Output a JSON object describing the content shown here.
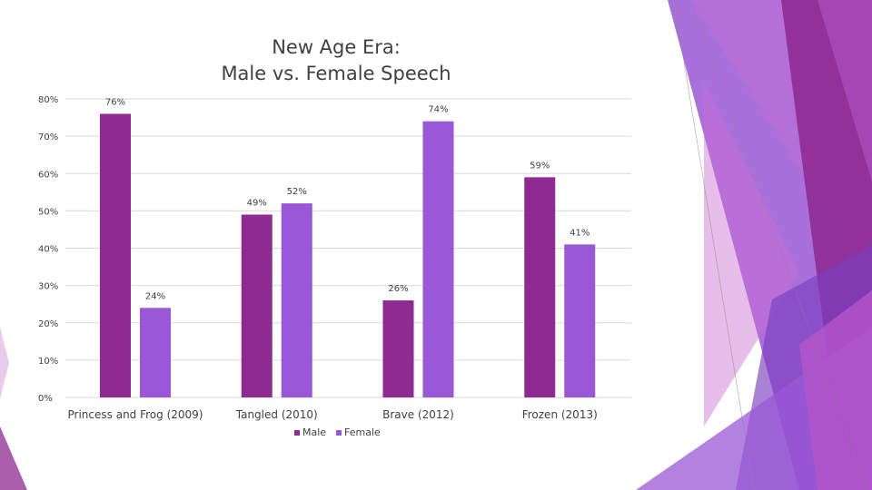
{
  "slide": {
    "title_line1": "New Age Era:",
    "title_line2": "Male vs. Female Speech"
  },
  "chart_data": {
    "type": "bar",
    "title": "New Age Era: Male vs. Female Speech",
    "xlabel": "",
    "ylabel": "",
    "ylim": [
      0,
      80
    ],
    "yticks": [
      0,
      10,
      20,
      30,
      40,
      50,
      60,
      70,
      80
    ],
    "ytick_labels": [
      "0%",
      "10%",
      "20%",
      "30%",
      "40%",
      "50%",
      "60%",
      "70%",
      "80%"
    ],
    "categories": [
      "Princess and Frog (2009)",
      "Tangled (2010)",
      "Brave (2012)",
      "Frozen (2013)"
    ],
    "series": [
      {
        "name": "Male",
        "color": "#8E2A92",
        "values": [
          76,
          49,
          26,
          59
        ],
        "labels": [
          "76%",
          "49%",
          "26%",
          "59%"
        ]
      },
      {
        "name": "Female",
        "color": "#9A57D6",
        "values": [
          24,
          52,
          74,
          41
        ],
        "labels": [
          "24%",
          "52%",
          "74%",
          "41%"
        ]
      }
    ],
    "grid": true,
    "legend": "bottom-center"
  },
  "theme": {
    "gridline_color": "#D9D9D9",
    "text_color": "#404040",
    "deco_colors": [
      "#8E2A92",
      "#9A57D6",
      "#B455C8",
      "#C96ED0",
      "#7B3FBF"
    ]
  }
}
